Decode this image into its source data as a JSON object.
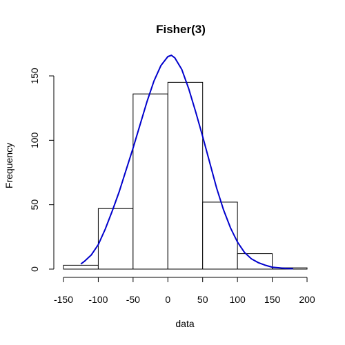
{
  "chart_data": {
    "type": "bar",
    "title": "Fisher(3)",
    "xlabel": "data",
    "ylabel": "Frequency",
    "bins": [
      {
        "start": -150,
        "end": -100,
        "count": 3
      },
      {
        "start": -100,
        "end": -50,
        "count": 47
      },
      {
        "start": -50,
        "end": 0,
        "count": 136
      },
      {
        "start": 0,
        "end": 50,
        "count": 145
      },
      {
        "start": 50,
        "end": 100,
        "count": 52
      },
      {
        "start": 100,
        "end": 150,
        "count": 12
      },
      {
        "start": 150,
        "end": 200,
        "count": 1
      }
    ],
    "x_ticks": [
      "-150",
      "-100",
      "-50",
      "0",
      "50",
      "100",
      "150",
      "200"
    ],
    "y_ticks": [
      "0",
      "50",
      "100",
      "150"
    ],
    "xlim": [
      -150,
      200
    ],
    "ylim": [
      0,
      150
    ],
    "grid": false,
    "overlay_curve": {
      "type": "line",
      "color": "#0000cc",
      "x": [
        -125,
        -120,
        -110,
        -100,
        -90,
        -80,
        -70,
        -60,
        -50,
        -40,
        -30,
        -20,
        -10,
        0,
        5,
        10,
        20,
        30,
        40,
        50,
        60,
        70,
        80,
        90,
        100,
        110,
        120,
        130,
        140,
        150,
        160,
        170,
        180
      ],
      "y": [
        4,
        6,
        11,
        19,
        31,
        45,
        60,
        77,
        94,
        112,
        130,
        146,
        158,
        165,
        166,
        164,
        155,
        140,
        122,
        103,
        83,
        63,
        46,
        32,
        21,
        13,
        8,
        5,
        3,
        1.5,
        1,
        0.5,
        0.3
      ]
    }
  }
}
